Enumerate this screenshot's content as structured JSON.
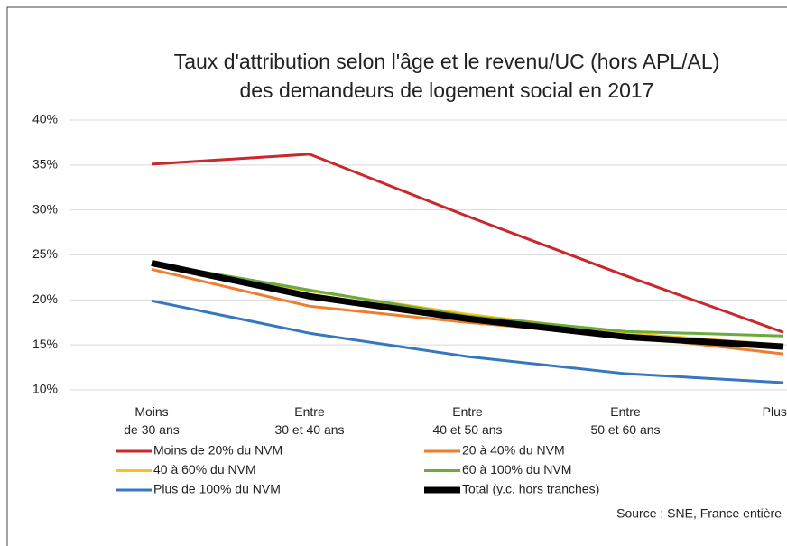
{
  "chart_data": {
    "type": "line",
    "title": [
      "Taux d'attribution selon l'âge et le revenu/UC (hors APL/AL)",
      "des demandeurs de logement social en 2017"
    ],
    "categories": [
      "Moins\nde 30 ans",
      "Entre\n30 et 40 ans",
      "Entre\n40 et 50 ans",
      "Entre\n50 et 60 ans",
      "Plus de"
    ],
    "series": [
      {
        "name": "Moins de 20% du NVM",
        "color": "#c9282d",
        "values": [
          35.1,
          36.2,
          29.3,
          22.7,
          16.4
        ]
      },
      {
        "name": "20 à 40% du NVM",
        "color": "#ef7d2e",
        "values": [
          23.4,
          19.3,
          17.5,
          16.0,
          14.0
        ]
      },
      {
        "name": "40 à 60% du NVM",
        "color": "#fcc11b",
        "values": [
          24.1,
          21.0,
          18.4,
          16.3,
          15.0
        ]
      },
      {
        "name": "60 à 100% du NVM",
        "color": "#6bab3e",
        "values": [
          24.1,
          21.1,
          18.2,
          16.5,
          16.0
        ]
      },
      {
        "name": "Plus de 100% du NVM",
        "color": "#3777c0",
        "values": [
          19.9,
          16.3,
          13.7,
          11.8,
          10.8
        ]
      },
      {
        "name": "Total (y.c. hors tranches)",
        "color": "#000000",
        "values": [
          24.1,
          20.4,
          17.9,
          15.9,
          14.8
        ]
      }
    ],
    "ylim": [
      10,
      40
    ],
    "yticks": [
      {
        "value": 10,
        "label": "10%"
      },
      {
        "value": 15,
        "label": "15%"
      },
      {
        "value": 20,
        "label": "20%"
      },
      {
        "value": 25,
        "label": "25%"
      },
      {
        "value": 30,
        "label": "30%"
      },
      {
        "value": 35,
        "label": "35%"
      },
      {
        "value": 40,
        "label": "40%"
      }
    ],
    "grid": true,
    "source": "Source : SNE, France entière"
  }
}
